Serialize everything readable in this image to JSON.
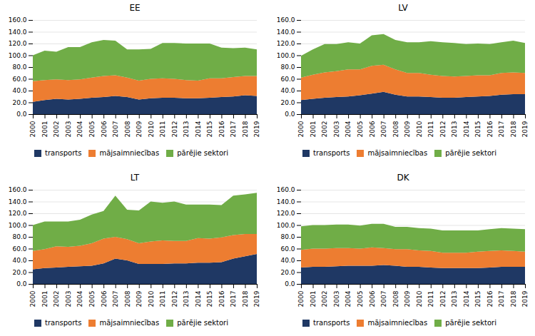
{
  "chart_data": [
    {
      "type": "area",
      "title": "EE",
      "stacked": true,
      "grid": true,
      "legend": "bottom",
      "x": [
        2000,
        2001,
        2002,
        2003,
        2004,
        2005,
        2006,
        2007,
        2008,
        2009,
        2010,
        2011,
        2012,
        2013,
        2014,
        2015,
        2016,
        2017,
        2018,
        2019
      ],
      "series": [
        {
          "name": "transports",
          "color": "#1F3864",
          "values": [
            21,
            24,
            26,
            25,
            26,
            28,
            29,
            31,
            29,
            25,
            27,
            28,
            28,
            27,
            27,
            28,
            29,
            30,
            32,
            31
          ]
        },
        {
          "name": "mājsaimniecības",
          "color": "#ED7D31",
          "values": [
            35,
            34,
            33,
            33,
            33,
            34,
            36,
            35,
            33,
            32,
            33,
            33,
            32,
            31,
            30,
            33,
            32,
            33,
            33,
            34
          ]
        },
        {
          "name": "pārējie sektori",
          "color": "#70AD47",
          "values": [
            44,
            50,
            47,
            56,
            55,
            60,
            61,
            59,
            48,
            53,
            51,
            60,
            61,
            62,
            63,
            59,
            52,
            49,
            48,
            45
          ]
        }
      ],
      "xlim": [
        2000,
        2019
      ],
      "xticks": [
        2000,
        2001,
        2002,
        2003,
        2004,
        2005,
        2006,
        2007,
        2008,
        2009,
        2010,
        2011,
        2012,
        2013,
        2014,
        2015,
        2016,
        2017,
        2018,
        2019
      ],
      "ylim": [
        0,
        160
      ],
      "yticks": [
        {
          "value": 0,
          "label": "0.0"
        },
        {
          "value": 20,
          "label": "20.0"
        },
        {
          "value": 40,
          "label": "40.0"
        },
        {
          "value": 60,
          "label": "60.0"
        },
        {
          "value": 80,
          "label": "80.0"
        },
        {
          "value": 100,
          "label": "100.0"
        },
        {
          "value": 120,
          "label": "120.0"
        },
        {
          "value": 140,
          "label": "140.0"
        },
        {
          "value": 160,
          "label": "160.0"
        }
      ]
    },
    {
      "type": "area",
      "title": "LV",
      "stacked": true,
      "grid": true,
      "legend": "bottom",
      "x": [
        2000,
        2001,
        2002,
        2003,
        2004,
        2005,
        2006,
        2007,
        2008,
        2009,
        2010,
        2011,
        2012,
        2013,
        2014,
        2015,
        2016,
        2017,
        2018,
        2019
      ],
      "series": [
        {
          "name": "transports",
          "color": "#1F3864",
          "values": [
            24,
            26,
            28,
            29,
            30,
            32,
            35,
            38,
            33,
            30,
            30,
            29,
            28,
            28,
            29,
            30,
            31,
            33,
            34,
            34
          ]
        },
        {
          "name": "mājsaimniecības",
          "color": "#ED7D31",
          "values": [
            38,
            41,
            43,
            44,
            46,
            44,
            47,
            46,
            43,
            40,
            40,
            38,
            37,
            36,
            36,
            36,
            35,
            37,
            37,
            36
          ]
        },
        {
          "name": "pārējie sektori",
          "color": "#70AD47",
          "values": [
            37,
            43,
            48,
            46,
            46,
            44,
            52,
            52,
            50,
            52,
            52,
            57,
            57,
            57,
            54,
            54,
            53,
            52,
            54,
            51
          ]
        }
      ],
      "xlim": [
        2000,
        2019
      ],
      "xticks": [
        2000,
        2001,
        2002,
        2003,
        2004,
        2005,
        2006,
        2007,
        2008,
        2009,
        2010,
        2011,
        2012,
        2013,
        2014,
        2015,
        2016,
        2017,
        2018,
        2019
      ],
      "ylim": [
        0,
        160
      ],
      "yticks": [
        {
          "value": 0,
          "label": "0.0"
        },
        {
          "value": 20,
          "label": "20.0"
        },
        {
          "value": 40,
          "label": "40.0"
        },
        {
          "value": 60,
          "label": "60.0"
        },
        {
          "value": 80,
          "label": "80.0"
        },
        {
          "value": 100,
          "label": "100.0"
        },
        {
          "value": 120,
          "label": "120.0"
        },
        {
          "value": 140,
          "label": "140.0"
        },
        {
          "value": 160,
          "label": "160.0"
        }
      ]
    },
    {
      "type": "area",
      "title": "LT",
      "stacked": true,
      "grid": true,
      "legend": "bottom",
      "x": [
        2000,
        2001,
        2002,
        2003,
        2004,
        2005,
        2006,
        2007,
        2008,
        2009,
        2010,
        2011,
        2012,
        2013,
        2014,
        2015,
        2016,
        2017,
        2018,
        2019
      ],
      "series": [
        {
          "name": "transports",
          "color": "#1F3864",
          "values": [
            25,
            27,
            28,
            29,
            30,
            31,
            35,
            43,
            40,
            34,
            34,
            34,
            35,
            35,
            36,
            36,
            37,
            43,
            47,
            51
          ]
        },
        {
          "name": "mājsaimniecības",
          "color": "#ED7D31",
          "values": [
            31,
            32,
            36,
            34,
            35,
            38,
            42,
            37,
            36,
            35,
            38,
            40,
            38,
            38,
            42,
            41,
            42,
            40,
            38,
            34
          ]
        },
        {
          "name": "pārējie sektori",
          "color": "#70AD47",
          "values": [
            44,
            47,
            42,
            43,
            44,
            49,
            47,
            70,
            50,
            56,
            68,
            64,
            67,
            62,
            57,
            58,
            55,
            67,
            67,
            70
          ]
        }
      ],
      "xlim": [
        2000,
        2019
      ],
      "xticks": [
        2000,
        2001,
        2002,
        2003,
        2004,
        2005,
        2006,
        2007,
        2008,
        2009,
        2010,
        2011,
        2012,
        2013,
        2014,
        2015,
        2016,
        2017,
        2018,
        2019
      ],
      "ylim": [
        0,
        160
      ],
      "yticks": [
        {
          "value": 0,
          "label": "0.0"
        },
        {
          "value": 20,
          "label": "20.0"
        },
        {
          "value": 40,
          "label": "40.0"
        },
        {
          "value": 60,
          "label": "60.0"
        },
        {
          "value": 80,
          "label": "80.0"
        },
        {
          "value": 100,
          "label": "100.0"
        },
        {
          "value": 120,
          "label": "120.0"
        },
        {
          "value": 140,
          "label": "140.0"
        },
        {
          "value": 160,
          "label": "160.0"
        }
      ]
    },
    {
      "type": "area",
      "title": "DK",
      "stacked": true,
      "grid": true,
      "legend": "bottom",
      "x": [
        2000,
        2001,
        2002,
        2003,
        2004,
        2005,
        2006,
        2007,
        2008,
        2009,
        2010,
        2011,
        2012,
        2013,
        2014,
        2015,
        2016,
        2017,
        2018,
        2019
      ],
      "series": [
        {
          "name": "transports",
          "color": "#1F3864",
          "values": [
            28,
            29,
            29,
            30,
            31,
            31,
            31,
            32,
            31,
            29,
            29,
            28,
            27,
            27,
            27,
            27,
            28,
            29,
            29,
            29
          ]
        },
        {
          "name": "mājsaimniecības",
          "color": "#ED7D31",
          "values": [
            30,
            31,
            31,
            31,
            30,
            29,
            31,
            29,
            28,
            30,
            28,
            28,
            26,
            26,
            26,
            28,
            28,
            28,
            27,
            26
          ]
        },
        {
          "name": "pārējie sektori",
          "color": "#70AD47",
          "values": [
            40,
            40,
            40,
            40,
            40,
            39,
            40,
            41,
            38,
            38,
            38,
            38,
            38,
            38,
            38,
            36,
            37,
            38,
            38,
            38
          ]
        }
      ],
      "xlim": [
        2000,
        2019
      ],
      "xticks": [
        2000,
        2001,
        2002,
        2003,
        2004,
        2005,
        2006,
        2007,
        2008,
        2009,
        2010,
        2011,
        2012,
        2013,
        2014,
        2015,
        2016,
        2017,
        2018,
        2019
      ],
      "ylim": [
        0,
        160
      ],
      "yticks": [
        {
          "value": 0,
          "label": "0.0"
        },
        {
          "value": 20,
          "label": "20.0"
        },
        {
          "value": 40,
          "label": "40.0"
        },
        {
          "value": 60,
          "label": "60.0"
        },
        {
          "value": 80,
          "label": "80.0"
        },
        {
          "value": 100,
          "label": "100.0"
        },
        {
          "value": 120,
          "label": "120.0"
        },
        {
          "value": 140,
          "label": "140.0"
        },
        {
          "value": 160,
          "label": "160.0"
        }
      ]
    }
  ]
}
